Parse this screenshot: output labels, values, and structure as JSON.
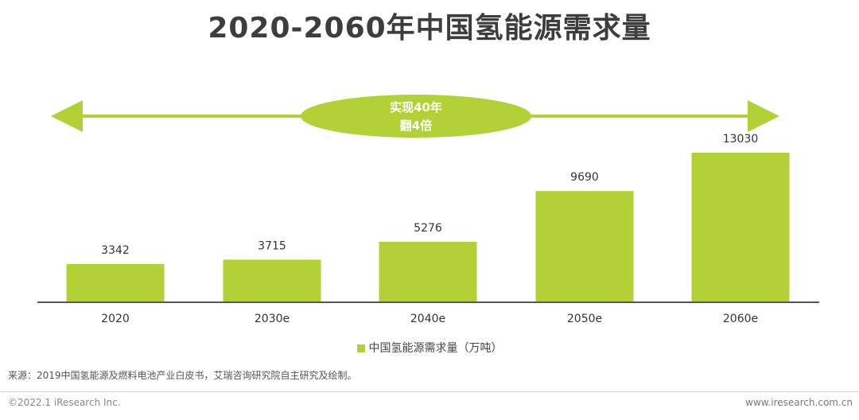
{
  "title": "2020-2060年中国氢能源需求量",
  "callout": {
    "line1": "实现40年",
    "line2": "翻4倍"
  },
  "colors": {
    "bar": "#b1d136",
    "title": "#3d3d3d",
    "axis": "#555555"
  },
  "chart_data": {
    "type": "bar",
    "categories": [
      "2020",
      "2030e",
      "2040e",
      "2050e",
      "2060e"
    ],
    "values": [
      3342,
      3715,
      5276,
      9690,
      13030
    ],
    "series": [
      {
        "name": "中国氢能源需求量（万吨）",
        "values": [
          3342,
          3715,
          5276,
          9690,
          13030
        ]
      }
    ],
    "ylim": [
      0,
      14000
    ],
    "xlabel": "",
    "ylabel": "",
    "legend_position": "bottom-center",
    "grid": false
  },
  "legend": {
    "label": "中国氢能源需求量（万吨）"
  },
  "source": "来源：2019中国氢能源及燃料电池产业白皮书，艾瑞咨询研究院自主研究及绘制。",
  "copyright": "©2022.1 iResearch Inc.",
  "website": "www.iresearch.com.cn"
}
